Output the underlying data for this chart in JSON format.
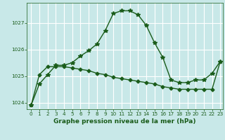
{
  "title": "Graphe pression niveau de la mer (hPa)",
  "bg_color": "#c8e8e8",
  "grid_color": "#ffffff",
  "line_color": "#1a5c1a",
  "line1_x": [
    0,
    1,
    2,
    3,
    4,
    5,
    6,
    7,
    8,
    9,
    10,
    11,
    12,
    13,
    14,
    15,
    16,
    17,
    18,
    19,
    20,
    21,
    22,
    23
  ],
  "line1_y": [
    1023.9,
    1024.7,
    1025.05,
    1025.4,
    1025.4,
    1025.5,
    1025.75,
    1025.95,
    1026.2,
    1026.7,
    1027.35,
    1027.45,
    1027.45,
    1027.3,
    1026.9,
    1026.25,
    1025.7,
    1024.85,
    1024.75,
    1024.75,
    1024.85,
    1024.85,
    1025.1,
    1025.55
  ],
  "line2_x": [
    0,
    1,
    2,
    3,
    4,
    5,
    6,
    7,
    8,
    9,
    10,
    11,
    12,
    13,
    14,
    15,
    16,
    17,
    18,
    19,
    20,
    21,
    22,
    23
  ],
  "line2_y": [
    1023.9,
    1025.05,
    1025.35,
    1025.35,
    1025.35,
    1025.3,
    1025.25,
    1025.2,
    1025.1,
    1025.05,
    1024.95,
    1024.9,
    1024.85,
    1024.8,
    1024.75,
    1024.7,
    1024.6,
    1024.55,
    1024.5,
    1024.5,
    1024.5,
    1024.5,
    1024.5,
    1025.55
  ],
  "ylim": [
    1023.75,
    1027.75
  ],
  "yticks": [
    1024,
    1025,
    1026,
    1027
  ],
  "xlim_min": -0.5,
  "xlim_max": 23.3,
  "xticks": [
    0,
    1,
    2,
    3,
    4,
    5,
    6,
    7,
    8,
    9,
    10,
    11,
    12,
    13,
    14,
    15,
    16,
    17,
    18,
    19,
    20,
    21,
    22,
    23
  ],
  "xlabel_fontsize": 6.5,
  "tick_fontsize": 5.2,
  "linewidth": 1.0,
  "marker1": "*",
  "marker2": "D",
  "markersize1": 4,
  "markersize2": 2.5
}
